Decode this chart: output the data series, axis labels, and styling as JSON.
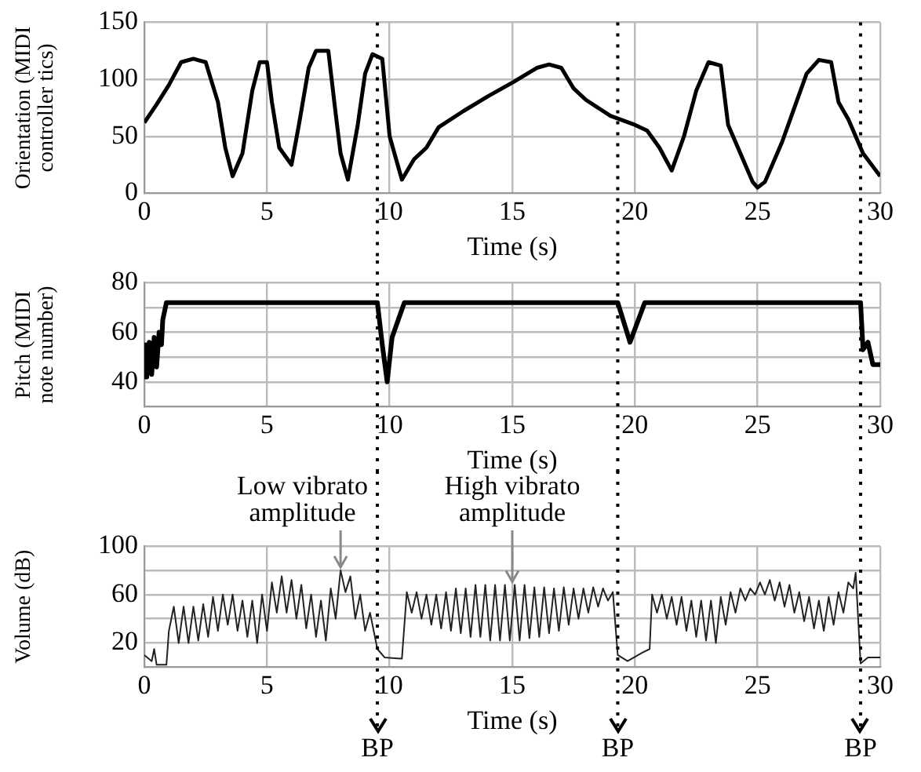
{
  "chart_data": [
    {
      "type": "line",
      "ylabel": "Orientation (MIDI controller tics)",
      "xlabel": "Time (s)",
      "color": "#000000",
      "grid": true,
      "xlim": [
        0,
        30
      ],
      "xticks": [
        0,
        5,
        10,
        15,
        20,
        25,
        30
      ],
      "ylim": [
        0,
        150
      ],
      "yticks": [
        0,
        50,
        100,
        150
      ],
      "x": [
        0,
        0.5,
        1,
        1.5,
        2,
        2.5,
        3,
        3.3,
        3.6,
        4,
        4.4,
        4.7,
        5,
        5.2,
        5.5,
        6,
        6.3,
        6.7,
        7,
        7.5,
        7.8,
        8,
        8.3,
        8.7,
        9,
        9.3,
        9.7,
        10,
        10.5,
        11,
        11.5,
        12,
        13,
        14,
        15,
        16,
        16.5,
        17,
        17.5,
        18,
        19,
        20,
        20.5,
        21,
        21.5,
        22,
        22.5,
        23,
        23.5,
        23.8,
        24.3,
        24.8,
        25,
        25.3,
        26,
        26.5,
        27,
        27.5,
        28,
        28.3,
        28.7,
        29.3,
        30
      ],
      "values": [
        62,
        78,
        95,
        115,
        118,
        115,
        80,
        40,
        15,
        35,
        90,
        115,
        115,
        80,
        40,
        25,
        60,
        110,
        125,
        125,
        70,
        35,
        12,
        60,
        105,
        122,
        118,
        50,
        12,
        30,
        40,
        58,
        72,
        85,
        97,
        110,
        113,
        110,
        92,
        82,
        68,
        60,
        55,
        40,
        20,
        50,
        90,
        115,
        112,
        60,
        35,
        10,
        5,
        10,
        45,
        75,
        105,
        117,
        115,
        80,
        65,
        35,
        15
      ],
      "ref_lines": [
        {
          "axis": "x",
          "value": 9.5,
          "line_style": "dotted",
          "color": "#000000"
        },
        {
          "axis": "x",
          "value": 19.3,
          "line_style": "dotted",
          "color": "#000000"
        },
        {
          "axis": "x",
          "value": 29.2,
          "line_style": "dotted",
          "color": "#000000"
        }
      ]
    },
    {
      "type": "line",
      "ylabel": "Pitch (MIDI note number)",
      "xlabel": "Time (s)",
      "color": "#000000",
      "grid": true,
      "xlim": [
        0,
        30
      ],
      "xticks": [
        0,
        5,
        10,
        15,
        20,
        25,
        30
      ],
      "ylim": [
        30,
        80
      ],
      "yticks": [
        {
          "value": 30,
          "label": null
        },
        40,
        {
          "value": 50,
          "label": null
        },
        60,
        {
          "value": 70,
          "label": null
        },
        80
      ],
      "x": [
        0,
        0.05,
        0.1,
        0.2,
        0.3,
        0.4,
        0.5,
        0.6,
        0.7,
        0.75,
        0.9,
        9.5,
        9.7,
        9.9,
        10.1,
        10.6,
        19.3,
        19.8,
        20.4,
        29.2,
        29.3,
        29.5,
        29.7,
        30
      ],
      "values": [
        42,
        55,
        42,
        56,
        43,
        58,
        46,
        60,
        55,
        65,
        72,
        72,
        55,
        40,
        58,
        72,
        72,
        56,
        72,
        72,
        53,
        56,
        47,
        47
      ],
      "ref_lines": [
        {
          "axis": "x",
          "value": 9.5,
          "line_style": "dotted",
          "color": "#000000"
        },
        {
          "axis": "x",
          "value": 19.3,
          "line_style": "dotted",
          "color": "#000000"
        },
        {
          "axis": "x",
          "value": 29.2,
          "line_style": "dotted",
          "color": "#000000"
        }
      ]
    },
    {
      "type": "line",
      "ylabel": "Volume (dB)",
      "xlabel": "Time (s)",
      "color": "#222222",
      "grid": true,
      "xlim": [
        0,
        30
      ],
      "xticks": [
        0,
        5,
        10,
        15,
        20,
        25,
        30
      ],
      "ylim": [
        0,
        100
      ],
      "yticks": [
        {
          "value": 0,
          "label": null
        },
        20,
        {
          "value": 40,
          "label": null
        },
        60,
        {
          "value": 80,
          "label": null
        },
        100
      ],
      "x": [
        0,
        0.3,
        0.4,
        0.5,
        0.9,
        1.0,
        1.2,
        1.4,
        1.6,
        1.8,
        2.0,
        2.2,
        2.4,
        2.6,
        2.8,
        3.0,
        3.2,
        3.4,
        3.6,
        3.8,
        4.0,
        4.2,
        4.4,
        4.6,
        4.8,
        5.0,
        5.2,
        5.4,
        5.6,
        5.8,
        6.0,
        6.2,
        6.4,
        6.6,
        6.8,
        7.0,
        7.2,
        7.4,
        7.6,
        7.8,
        8.0,
        8.2,
        8.4,
        8.6,
        8.8,
        9.0,
        9.2,
        9.5,
        9.8,
        10.5,
        10.7,
        10.9,
        11.1,
        11.3,
        11.5,
        11.7,
        11.9,
        12.1,
        12.3,
        12.5,
        12.7,
        12.9,
        13.1,
        13.3,
        13.5,
        13.7,
        13.9,
        14.1,
        14.3,
        14.5,
        14.7,
        14.9,
        15.1,
        15.3,
        15.5,
        15.7,
        15.9,
        16.1,
        16.3,
        16.5,
        16.7,
        16.9,
        17.1,
        17.3,
        17.5,
        17.7,
        17.9,
        18.1,
        18.3,
        18.5,
        18.7,
        18.9,
        19.1,
        19.3,
        19.7,
        20.3,
        20.6,
        20.7,
        20.9,
        21.1,
        21.3,
        21.5,
        21.7,
        21.9,
        22.1,
        22.3,
        22.5,
        22.7,
        22.9,
        23.1,
        23.3,
        23.5,
        23.7,
        23.9,
        24.1,
        24.3,
        24.5,
        24.7,
        24.9,
        25.1,
        25.3,
        25.5,
        25.7,
        25.9,
        26.1,
        26.3,
        26.5,
        26.7,
        26.9,
        27.1,
        27.3,
        27.5,
        27.7,
        27.9,
        28.1,
        28.3,
        28.5,
        28.7,
        28.9,
        29.0,
        29.2,
        29.5,
        30
      ],
      "values": [
        10,
        5,
        15,
        2,
        2,
        30,
        50,
        20,
        50,
        20,
        50,
        22,
        52,
        25,
        58,
        30,
        60,
        35,
        60,
        30,
        55,
        25,
        55,
        20,
        60,
        30,
        70,
        45,
        75,
        45,
        72,
        40,
        68,
        32,
        60,
        25,
        55,
        22,
        65,
        40,
        80,
        62,
        75,
        40,
        60,
        30,
        45,
        15,
        8,
        7,
        62,
        45,
        62,
        40,
        60,
        35,
        60,
        32,
        62,
        30,
        65,
        28,
        65,
        25,
        68,
        25,
        68,
        22,
        68,
        22,
        68,
        22,
        68,
        22,
        68,
        24,
        66,
        25,
        66,
        28,
        65,
        30,
        66,
        35,
        65,
        40,
        65,
        45,
        66,
        50,
        65,
        55,
        62,
        10,
        5,
        12,
        15,
        60,
        45,
        60,
        40,
        58,
        35,
        58,
        30,
        55,
        25,
        55,
        22,
        55,
        20,
        58,
        35,
        62,
        45,
        65,
        55,
        65,
        60,
        70,
        60,
        72,
        55,
        70,
        50,
        68,
        45,
        62,
        38,
        58,
        32,
        55,
        30,
        58,
        35,
        62,
        45,
        70,
        65,
        78,
        3,
        8,
        8
      ],
      "annotations": [
        {
          "text": "Low vibrato amplitude",
          "x": 8,
          "y": 80
        },
        {
          "text": "High vibrato amplitude",
          "x": 15,
          "y": 68
        }
      ],
      "ref_lines": [
        {
          "axis": "x",
          "value": 9.5,
          "line_style": "dotted",
          "color": "#000000",
          "label": "BP"
        },
        {
          "axis": "x",
          "value": 19.3,
          "line_style": "dotted",
          "color": "#000000",
          "label": "BP"
        },
        {
          "axis": "x",
          "value": 29.2,
          "line_style": "dotted",
          "color": "#000000",
          "label": "BP"
        }
      ]
    }
  ]
}
